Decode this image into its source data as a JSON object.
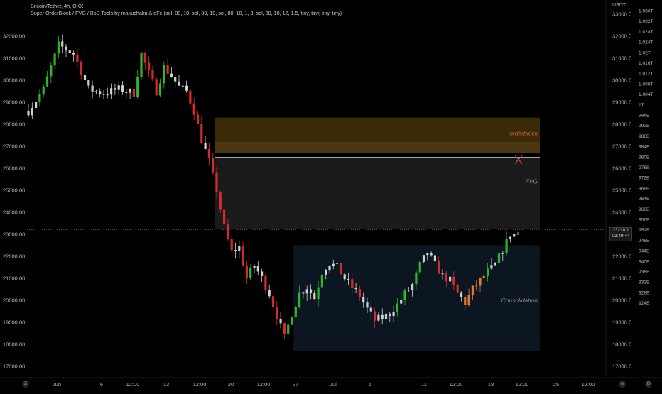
{
  "header": {
    "symbol_line": "Bitcoin/Tether, 4h, OKX",
    "indicator_line": "Super OrderBlock / FVG / BoS Tools by makuchaku & eFe (sol, 80, 10, sol, 80, 10, sol, 80, 10, 1, 3, sol, 80, 10, 12, 1.5, tiny, tiny, tiny, tiny)"
  },
  "right_axis": {
    "unit_label": "USDT",
    "last_price": "23210.1",
    "countdown": "03:49:44",
    "secondary_ticks": [
      "1.036T",
      "1.032T",
      "1.028T",
      "1.024T",
      "1.02T",
      "1.016T",
      "1.012T",
      "1.008T",
      "1.004T",
      "1T",
      "996B",
      "992B",
      "988B",
      "984B",
      "980B",
      "976B",
      "972B",
      "968B",
      "964B",
      "960B",
      "956B",
      "952B",
      "948B",
      "944B",
      "940B",
      "936B",
      "932B",
      "928B",
      "924B"
    ]
  },
  "bottom": {
    "left_button": "Z",
    "right_button_a": "A",
    "right_button_b": "B"
  },
  "colors": {
    "bull": "#26a69a",
    "bear": "#ef5350",
    "neutral_candle": "#d0d0d0",
    "orderblock": "#3a2a08",
    "orderblock_inner": "#4a3610",
    "fvg": "#1a1a1a",
    "consolidation": "#0c1620",
    "orderblock_text": "#c4603a",
    "x_mark": "#d04a3a",
    "zone_text": "#8c8c8c"
  },
  "chart_data": {
    "type": "candlestick",
    "title": "Bitcoin/Tether, 4h, OKX",
    "xlabel": "",
    "ylabel": "",
    "ylim": [
      16500,
      34200
    ],
    "yticks": [
      17000,
      18000,
      19000,
      20000,
      21000,
      22000,
      23000,
      24000,
      25000,
      26000,
      27000,
      28000,
      29000,
      30000,
      31000,
      32000
    ],
    "ytick_labels": [
      "17000.00",
      "18000.00",
      "19000.00",
      "20000.00",
      "21000.00",
      "22000.00",
      "23000.00",
      "24000.00",
      "25000.00",
      "26000.00",
      "27000.00",
      "28000.00",
      "29000.00",
      "30000.00",
      "31000.00",
      "32000.00"
    ],
    "right_yticks": [
      17000,
      18000,
      19000,
      20000,
      21000,
      22000,
      23000,
      24000,
      25000,
      26000,
      27000,
      28000,
      29000,
      30000,
      31000,
      32000,
      33000
    ],
    "right_ytick_labels": [
      "17000.0",
      "18000.0",
      "19000.0",
      "20000.0",
      "21000.0",
      "22000.0",
      "23000.0",
      "24000.0",
      "25000.0",
      "26000.0",
      "27000.0",
      "28000.0",
      "29000.0",
      "30000.0",
      "31000.0",
      "32000.0",
      "33000.0"
    ],
    "x_tick_labels": [
      "Jun",
      "6",
      "12:00",
      "13",
      "12:00",
      "20",
      "12:00",
      "27",
      "Jul",
      "5",
      "11",
      "12:00",
      "18",
      "12:00",
      "25",
      "12:00"
    ],
    "path": [
      [
        0,
        28600
      ],
      [
        4,
        29600
      ],
      [
        8,
        31600
      ],
      [
        12,
        31200
      ],
      [
        16,
        29600
      ],
      [
        20,
        29400
      ],
      [
        24,
        29600
      ],
      [
        28,
        29400
      ],
      [
        30,
        31200
      ],
      [
        32,
        30300
      ],
      [
        34,
        29500
      ],
      [
        36,
        30600
      ],
      [
        38,
        30200
      ],
      [
        40,
        29700
      ],
      [
        42,
        29500
      ],
      [
        44,
        28600
      ],
      [
        46,
        27300
      ],
      [
        48,
        26300
      ],
      [
        50,
        25000
      ],
      [
        52,
        23300
      ],
      [
        54,
        22200
      ],
      [
        56,
        22400
      ],
      [
        58,
        21000
      ],
      [
        60,
        21600
      ],
      [
        62,
        21000
      ],
      [
        64,
        20300
      ],
      [
        66,
        19300
      ],
      [
        68,
        18300
      ],
      [
        70,
        19400
      ],
      [
        72,
        20300
      ],
      [
        74,
        20600
      ],
      [
        76,
        20100
      ],
      [
        78,
        21300
      ],
      [
        80,
        21700
      ],
      [
        82,
        21500
      ],
      [
        84,
        21000
      ],
      [
        86,
        20600
      ],
      [
        88,
        20200
      ],
      [
        90,
        19600
      ],
      [
        92,
        19100
      ],
      [
        94,
        19200
      ],
      [
        96,
        19400
      ],
      [
        98,
        19800
      ],
      [
        100,
        20300
      ],
      [
        102,
        20700
      ],
      [
        104,
        21600
      ],
      [
        106,
        22200
      ],
      [
        108,
        21600
      ],
      [
        110,
        21100
      ],
      [
        112,
        20900
      ],
      [
        114,
        20300
      ],
      [
        116,
        19900
      ],
      [
        118,
        20500
      ],
      [
        120,
        20900
      ],
      [
        122,
        21300
      ],
      [
        124,
        21600
      ],
      [
        126,
        22300
      ],
      [
        128,
        23000
      ]
    ],
    "special_candles": [
      [
        116,
        23000
      ],
      [
        117,
        22400
      ],
      [
        118,
        22100
      ],
      [
        119,
        21800
      ],
      [
        120,
        21900
      ],
      [
        121,
        21600
      ]
    ],
    "volatility": 380,
    "zones": [
      {
        "name": "orderblock",
        "label": "orderblock",
        "y": [
          26700,
          28300
        ],
        "x_start_index": 50
      },
      {
        "name": "fvg",
        "label": "FVG",
        "y": [
          23250,
          26500
        ],
        "x_start_index": 50
      },
      {
        "name": "consolidation",
        "label": "Consolidation",
        "y": [
          17700,
          22500
        ],
        "x_start_index": 71
      }
    ],
    "bos_level": 26500,
    "last_price": 23210.1,
    "x_mark_price": 26400
  }
}
